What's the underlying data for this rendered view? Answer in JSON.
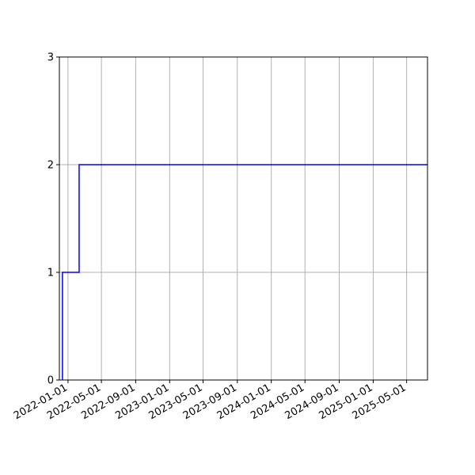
{
  "chart_data": {
    "type": "line",
    "step": true,
    "title": "",
    "xlabel": "",
    "ylabel": "",
    "x_axis_type": "date",
    "xlim": [
      "2021-12-01",
      "2025-07-15"
    ],
    "ylim": [
      0,
      3
    ],
    "x_ticks": [
      "2022-01-01",
      "2022-05-01",
      "2022-09-01",
      "2023-01-01",
      "2023-05-01",
      "2023-09-01",
      "2024-01-01",
      "2024-05-01",
      "2024-09-01",
      "2025-01-01",
      "2025-05-01"
    ],
    "y_ticks": [
      0,
      1,
      2,
      3
    ],
    "grid": true,
    "legend": "none",
    "series": [
      {
        "color": "#0000ff",
        "points": [
          {
            "x": "2021-12-12",
            "y": 0
          },
          {
            "x": "2021-12-12",
            "y": 1
          },
          {
            "x": "2022-02-10",
            "y": 1
          },
          {
            "x": "2022-02-10",
            "y": 2
          },
          {
            "x": "2025-07-15",
            "y": 2
          }
        ]
      }
    ]
  }
}
